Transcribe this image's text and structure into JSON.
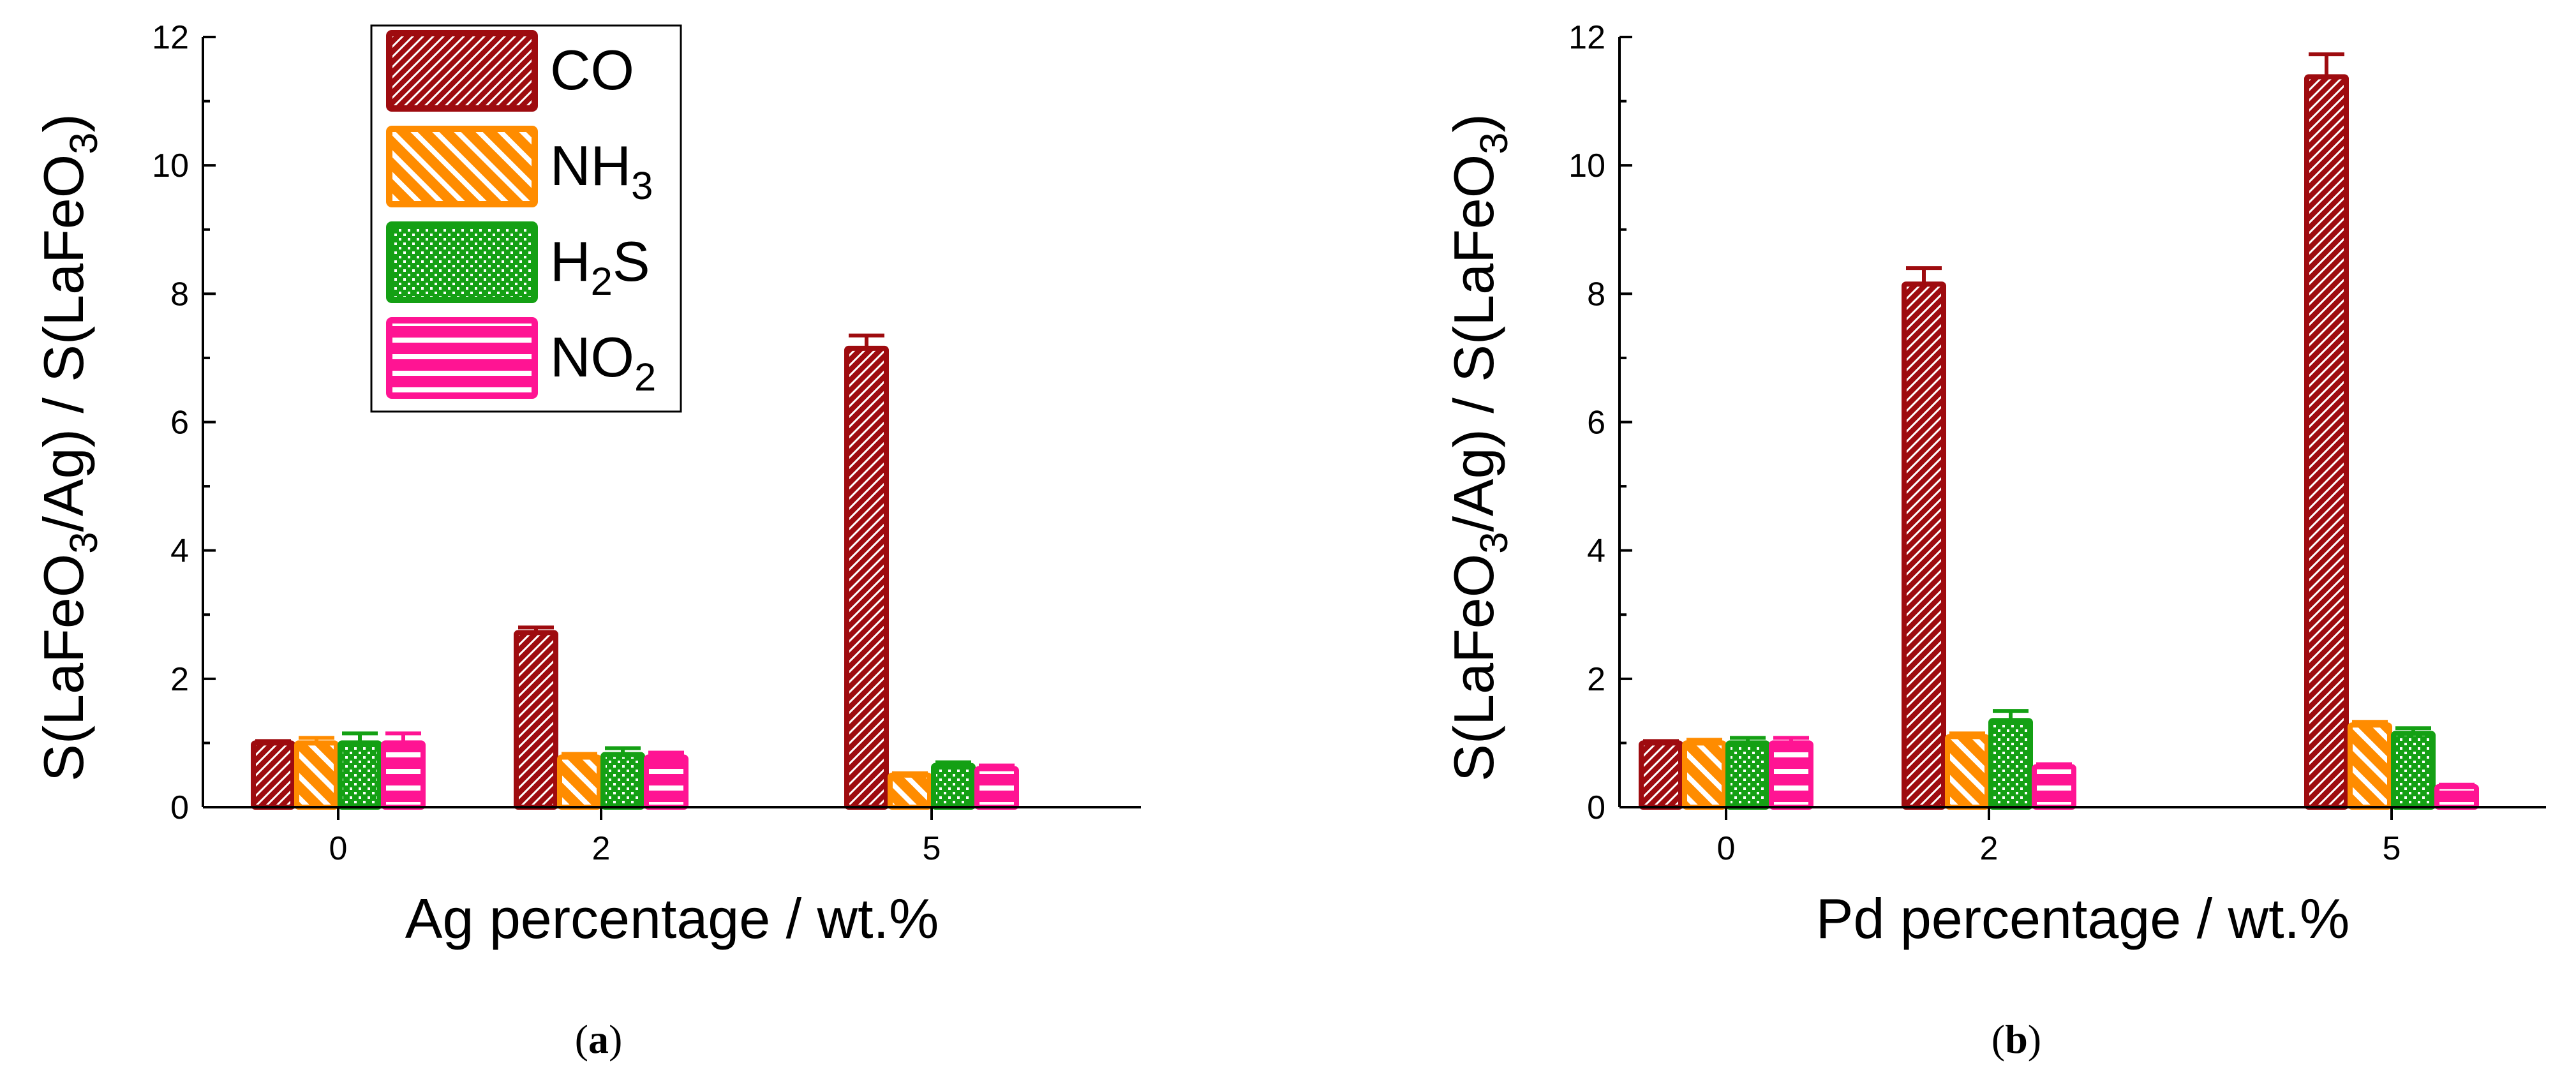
{
  "colors": {
    "CO": "#9e0b0f",
    "NH3": "#ff8c00",
    "H2S": "#14a014",
    "NO2": "#ff1493"
  },
  "legend": [
    {
      "key": "CO",
      "parts": [
        {
          "t": "CO"
        }
      ],
      "pattern": "diag-fine"
    },
    {
      "key": "NH3",
      "parts": [
        {
          "t": "NH"
        },
        {
          "t": "3",
          "sub": true
        }
      ],
      "pattern": "diag-wide"
    },
    {
      "key": "H2S",
      "parts": [
        {
          "t": "H"
        },
        {
          "t": "2",
          "sub": true
        },
        {
          "t": "S"
        }
      ],
      "pattern": "cross"
    },
    {
      "key": "NO2",
      "parts": [
        {
          "t": "NO"
        },
        {
          "t": "2",
          "sub": true
        }
      ],
      "pattern": "horiz"
    }
  ],
  "chart_data": [
    {
      "type": "bar",
      "panel": "(a)",
      "caption_letter": "a",
      "xlabel": "Ag percentage / wt.%",
      "ylabel_parts": [
        {
          "t": "S(LaFeO"
        },
        {
          "t": "3",
          "sub": true
        },
        {
          "t": "/Ag) / S(LaFeO"
        },
        {
          "t": "3",
          "sub": true
        },
        {
          "t": ")"
        }
      ],
      "ylim": [
        0,
        12
      ],
      "yticks": [
        "0",
        "2",
        "4",
        "6",
        "8",
        "10",
        "12"
      ],
      "categories": [
        "0",
        "2",
        "5"
      ],
      "series": [
        {
          "name": "CO",
          "values": [
            1.0,
            2.72,
            7.15
          ],
          "errors": [
            0.03,
            0.08,
            0.2
          ]
        },
        {
          "name": "NH3",
          "values": [
            1.0,
            0.78,
            0.5
          ],
          "errors": [
            0.08,
            0.05,
            0.03
          ]
        },
        {
          "name": "H2S",
          "values": [
            1.0,
            0.82,
            0.65
          ],
          "errors": [
            0.15,
            0.1,
            0.05
          ]
        },
        {
          "name": "NO2",
          "values": [
            1.0,
            0.78,
            0.6
          ],
          "errors": [
            0.15,
            0.07,
            0.05
          ]
        }
      ]
    },
    {
      "type": "bar",
      "panel": "(b)",
      "caption_letter": "b",
      "xlabel": "Pd percentage / wt.%",
      "ylabel_parts": [
        {
          "t": "S(LaFeO"
        },
        {
          "t": "3",
          "sub": true
        },
        {
          "t": "/Ag) / S(LaFeO"
        },
        {
          "t": "3",
          "sub": true
        },
        {
          "t": ")"
        }
      ],
      "ylim": [
        0,
        12
      ],
      "yticks": [
        "0",
        "2",
        "4",
        "6",
        "8",
        "10",
        "12"
      ],
      "categories": [
        "0",
        "2",
        "5"
      ],
      "series": [
        {
          "name": "CO",
          "values": [
            1.0,
            8.15,
            11.38
          ],
          "errors": [
            0.03,
            0.25,
            0.35
          ]
        },
        {
          "name": "NH3",
          "values": [
            1.0,
            1.1,
            1.28
          ],
          "errors": [
            0.05,
            0.05,
            0.05
          ]
        },
        {
          "name": "H2S",
          "values": [
            1.0,
            1.35,
            1.15
          ],
          "errors": [
            0.08,
            0.15,
            0.08
          ]
        },
        {
          "name": "NO2",
          "values": [
            1.0,
            0.63,
            0.32
          ],
          "errors": [
            0.08,
            0.04,
            0.03
          ]
        }
      ]
    }
  ]
}
